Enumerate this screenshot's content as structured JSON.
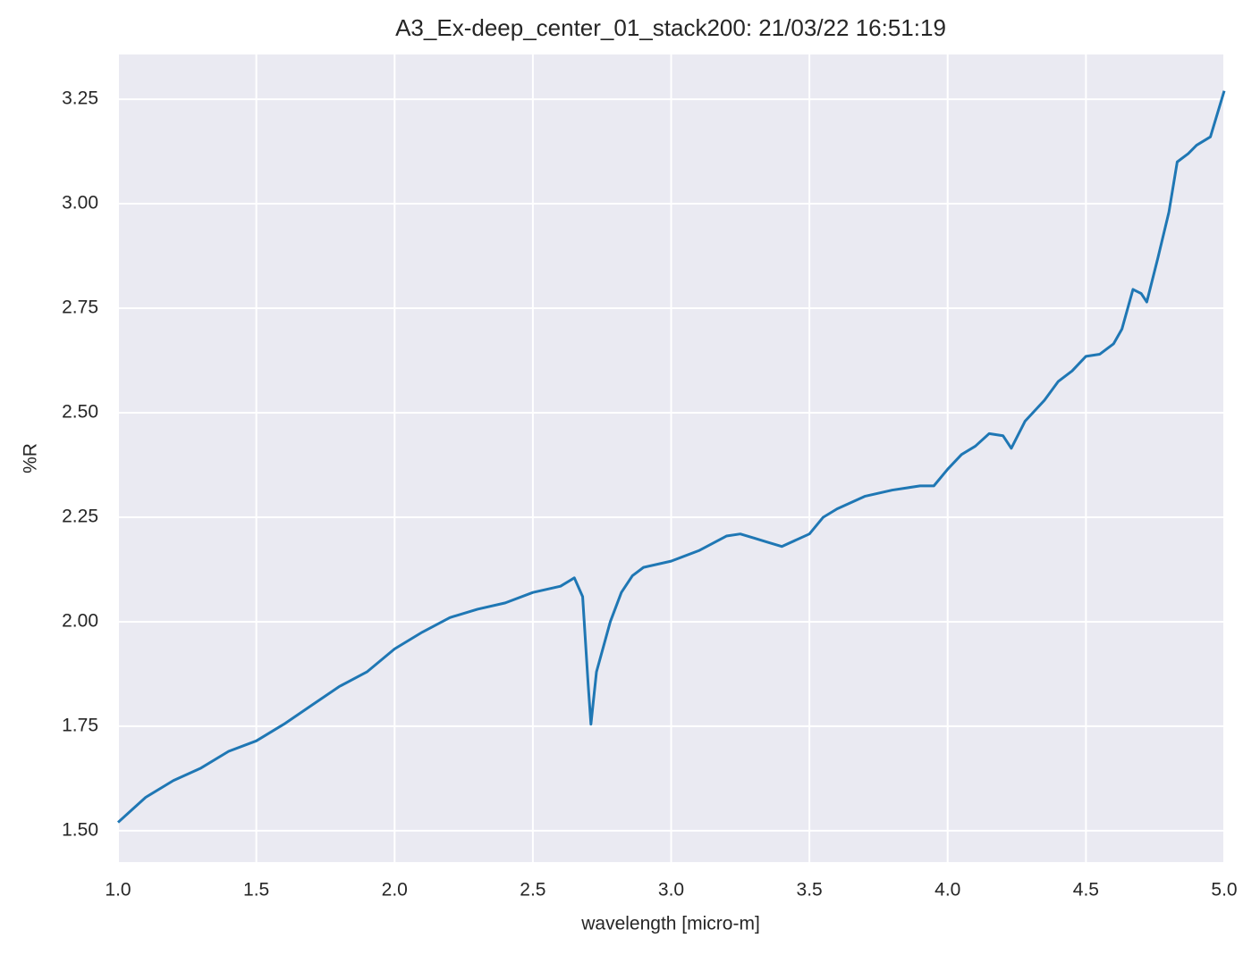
{
  "chart_data": {
    "type": "line",
    "title": "A3_Ex-deep_center_01_stack200:  21/03/22 16:51:19",
    "xlabel": "wavelength [micro-m]",
    "ylabel": "%R",
    "x": [
      1.0,
      1.05,
      1.1,
      1.2,
      1.3,
      1.4,
      1.5,
      1.6,
      1.7,
      1.8,
      1.9,
      2.0,
      2.1,
      2.2,
      2.3,
      2.4,
      2.5,
      2.6,
      2.65,
      2.68,
      2.7,
      2.71,
      2.73,
      2.78,
      2.82,
      2.86,
      2.9,
      3.0,
      3.1,
      3.2,
      3.25,
      3.3,
      3.35,
      3.4,
      3.5,
      3.55,
      3.6,
      3.7,
      3.8,
      3.9,
      3.95,
      4.0,
      4.05,
      4.1,
      4.15,
      4.2,
      4.23,
      4.28,
      4.35,
      4.4,
      4.45,
      4.5,
      4.55,
      4.6,
      4.63,
      4.67,
      4.7,
      4.72,
      4.76,
      4.8,
      4.83,
      4.87,
      4.9,
      4.95,
      5.0
    ],
    "values": [
      1.52,
      1.55,
      1.58,
      1.62,
      1.65,
      1.69,
      1.715,
      1.755,
      1.8,
      1.845,
      1.88,
      1.935,
      1.975,
      2.01,
      2.03,
      2.045,
      2.07,
      2.085,
      2.105,
      2.06,
      1.85,
      1.755,
      1.88,
      2.0,
      2.07,
      2.11,
      2.13,
      2.145,
      2.17,
      2.205,
      2.21,
      2.2,
      2.19,
      2.18,
      2.21,
      2.25,
      2.27,
      2.3,
      2.315,
      2.325,
      2.325,
      2.365,
      2.4,
      2.42,
      2.45,
      2.445,
      2.415,
      2.48,
      2.53,
      2.575,
      2.6,
      2.635,
      2.64,
      2.665,
      2.7,
      2.795,
      2.785,
      2.765,
      2.87,
      2.98,
      3.1,
      3.12,
      3.14,
      3.16,
      3.27
    ],
    "color": "#1f77b4",
    "xlim": [
      1.0,
      5.0
    ],
    "xticks": [
      {
        "value": 1.0,
        "label": "1.0"
      },
      {
        "value": 1.5,
        "label": "1.5"
      },
      {
        "value": 2.0,
        "label": "2.0"
      },
      {
        "value": 2.5,
        "label": "2.5"
      },
      {
        "value": 3.0,
        "label": "3.0"
      },
      {
        "value": 3.5,
        "label": "3.5"
      },
      {
        "value": 4.0,
        "label": "4.0"
      },
      {
        "value": 4.5,
        "label": "4.5"
      },
      {
        "value": 5.0,
        "label": "5.0"
      }
    ],
    "ylim": [
      1.425,
      3.357
    ],
    "yticks": [
      {
        "value": 1.5,
        "label": "1.50"
      },
      {
        "value": 1.75,
        "label": "1.75"
      },
      {
        "value": 2.0,
        "label": "2.00"
      },
      {
        "value": 2.25,
        "label": "2.25"
      },
      {
        "value": 2.5,
        "label": "2.50"
      },
      {
        "value": 2.75,
        "label": "2.75"
      },
      {
        "value": 3.0,
        "label": "3.00"
      },
      {
        "value": 3.25,
        "label": "3.25"
      }
    ],
    "grid": true
  }
}
